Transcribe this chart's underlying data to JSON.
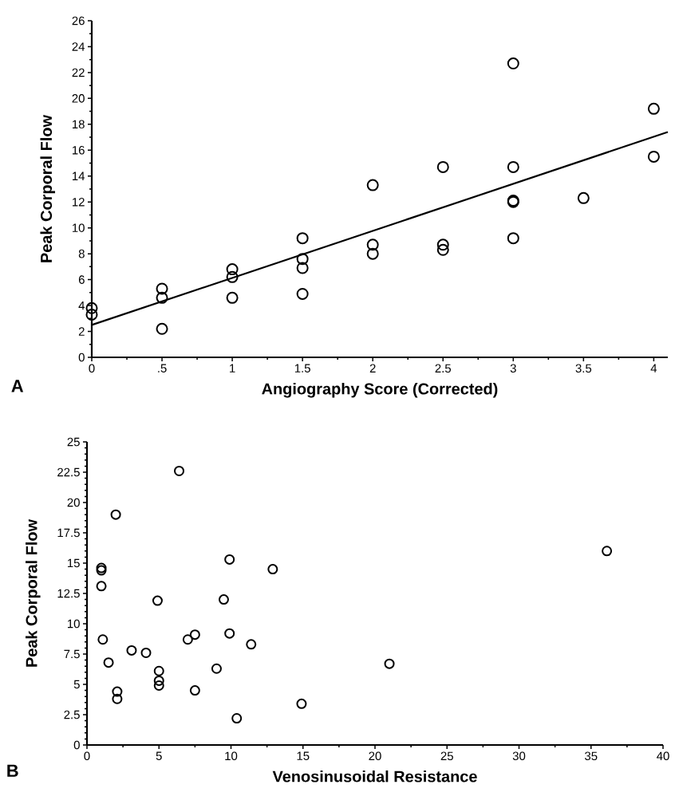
{
  "chart_data": [
    {
      "type": "scatter",
      "xlabel": "Angiography Score (Corrected)",
      "ylabel": "Peak Corporal Flow",
      "annotations": [
        "A"
      ],
      "marker": "circle",
      "xlim": [
        0,
        4.1
      ],
      "ylim": [
        0,
        26
      ],
      "xticks": [
        0,
        {
          "value": 0.5,
          "label": ".5"
        },
        1,
        1.5,
        2,
        2.5,
        3,
        3.5,
        4
      ],
      "yticks": [
        0,
        2,
        4,
        6,
        8,
        10,
        12,
        14,
        16,
        18,
        20,
        22,
        24,
        26
      ],
      "series": [
        {
          "color": "#000000",
          "x": [
            0,
            0,
            0.5,
            0.5,
            0.5,
            1,
            1,
            1,
            1.5,
            1.5,
            1.5,
            1.5,
            2,
            2,
            2,
            2.5,
            2.5,
            2.5,
            3,
            3,
            3,
            3,
            3,
            3.5,
            4,
            4
          ],
          "values": [
            3.8,
            3.3,
            5.3,
            4.6,
            2.2,
            6.8,
            6.2,
            4.6,
            9.2,
            7.6,
            6.9,
            4.9,
            13.3,
            8.7,
            8.0,
            14.7,
            8.7,
            8.3,
            22.7,
            14.7,
            12.1,
            12.0,
            9.2,
            12.3,
            19.2,
            15.5
          ]
        },
        {
          "type": "line",
          "color": "#000000",
          "marker": "none",
          "x": [
            0,
            4.1
          ],
          "values": [
            2.5,
            17.4
          ]
        }
      ]
    },
    {
      "type": "scatter",
      "xlabel": "Venosinusoidal Resistance",
      "ylabel": "Peak Corporal Flow",
      "annotations": [
        "B"
      ],
      "marker": "circle",
      "xlim": [
        0,
        40
      ],
      "ylim": [
        0,
        25
      ],
      "xticks": [
        0,
        5,
        10,
        15,
        20,
        25,
        30,
        35,
        40
      ],
      "yticks": [
        0,
        2.5,
        5,
        7.5,
        10,
        12.5,
        15,
        17.5,
        20,
        22.5,
        25
      ],
      "series": [
        {
          "color": "#000000",
          "x": [
            6.4,
            2.0,
            1.0,
            1.0,
            1.0,
            9.9,
            12.9,
            4.9,
            9.5,
            1.1,
            3.1,
            4.1,
            1.5,
            7.0,
            7.5,
            9.9,
            11.4,
            9.0,
            5.0,
            5.0,
            5.0,
            2.1,
            2.1,
            7.5,
            10.4,
            14.9,
            21.0,
            36.1
          ],
          "values": [
            22.6,
            19.0,
            14.6,
            14.4,
            13.1,
            15.3,
            14.5,
            11.9,
            12.0,
            8.7,
            7.8,
            7.6,
            6.8,
            8.7,
            9.1,
            9.2,
            8.3,
            6.3,
            6.1,
            5.3,
            4.9,
            4.4,
            3.8,
            4.5,
            2.2,
            3.4,
            6.7,
            16.0
          ]
        }
      ]
    }
  ]
}
